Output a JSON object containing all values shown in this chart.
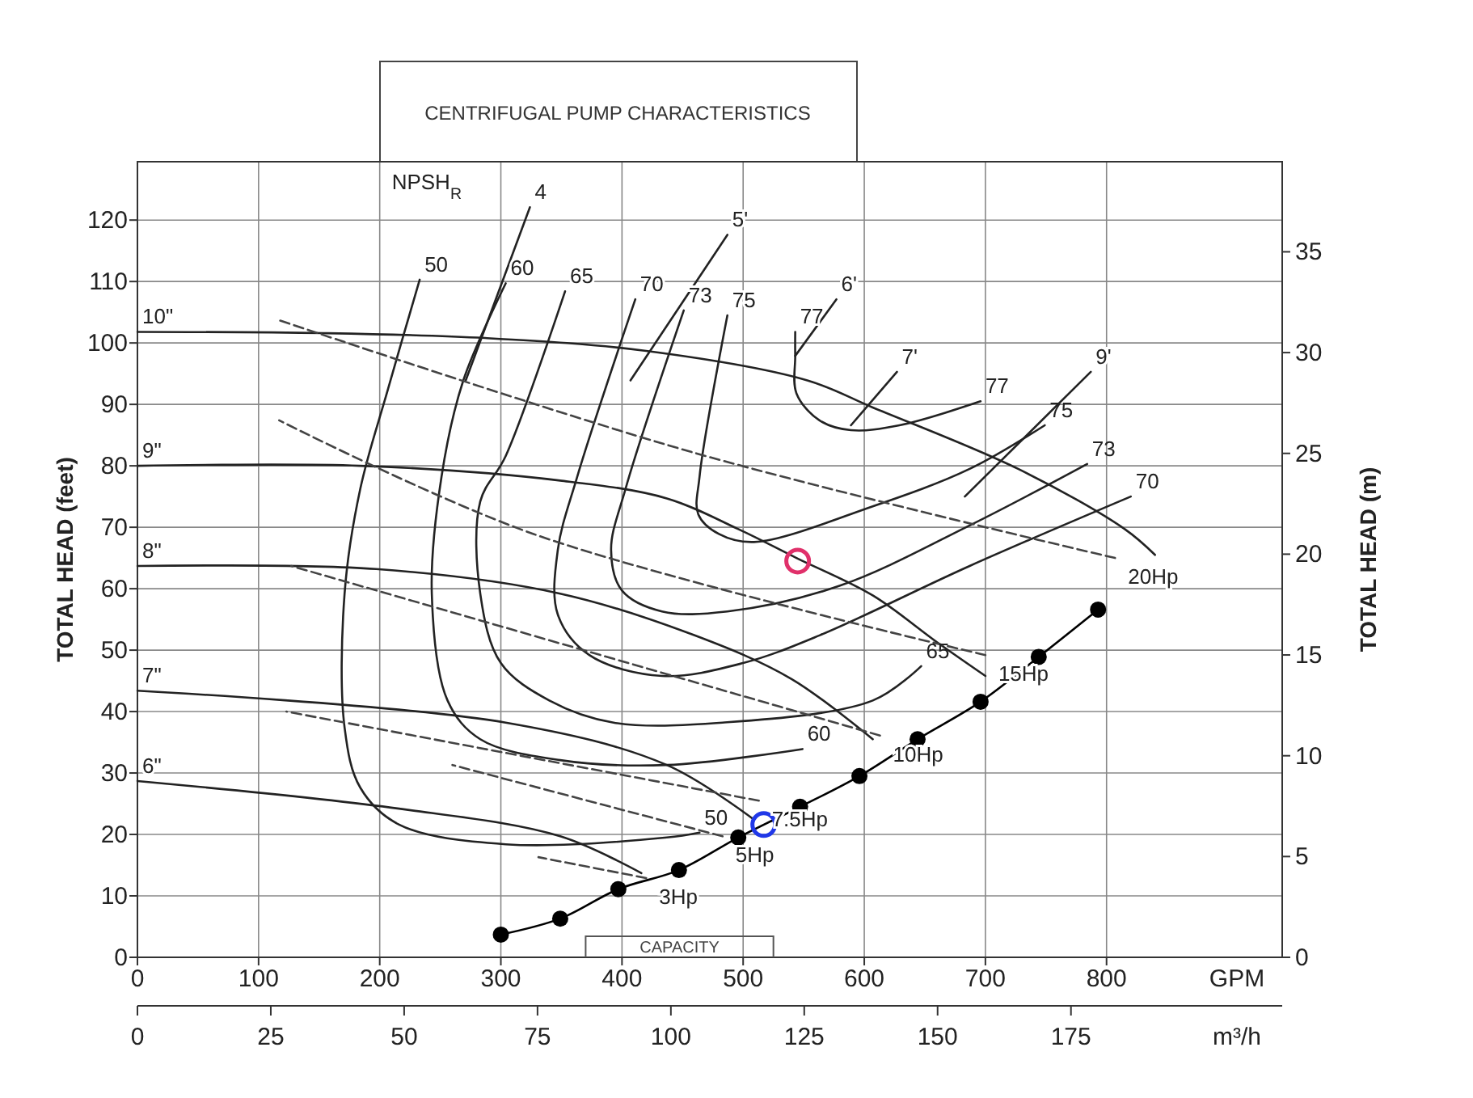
{
  "chart_data": {
    "type": "line",
    "title": "CENTRIFUGAL PUMP CHARACTERISTICS",
    "xlabel": "GPM",
    "x2label": "m³/h",
    "ylabel": "TOTAL HEAD (feet)",
    "y2label": "TOTAL HEAD (m)",
    "annotations": [
      "NPSH$_{R}$",
      "CAPACITY"
    ],
    "xlim": [
      0,
      945
    ],
    "xticks": [
      0,
      100,
      200,
      300,
      400,
      500,
      600,
      700,
      800
    ],
    "x2lim": [
      0,
      214.6
    ],
    "x2ticks": [
      0,
      25,
      50,
      75,
      100,
      125,
      150,
      175
    ],
    "ylim": [
      0,
      129.5
    ],
    "yticks": [
      0,
      10,
      20,
      30,
      40,
      50,
      60,
      70,
      80,
      90,
      100,
      110,
      120
    ],
    "y2lim": [
      0,
      39.47
    ],
    "y2ticks": [
      0,
      5,
      10,
      15,
      20,
      25,
      30,
      35
    ],
    "grid": true,
    "series": [
      {
        "name": "10\"",
        "color": "#222222",
        "x": [
          0,
          153,
          287,
          420,
          553,
          607,
          727,
          815,
          840
        ],
        "values": [
          101.8,
          101.6,
          100.8,
          98.7,
          93.9,
          89.5,
          79.5,
          69.7,
          65.5
        ]
      },
      {
        "name": "9\"",
        "color": "#222222",
        "x": [
          0,
          184,
          349,
          437,
          496,
          544,
          607,
          660,
          700
        ],
        "values": [
          80,
          80,
          77.6,
          74.7,
          69.7,
          65,
          58.9,
          51.3,
          45.8
        ]
      },
      {
        "name": "8\"",
        "color": "#222222",
        "x": [
          0,
          197,
          349,
          460,
          540,
          607
        ],
        "values": [
          63.7,
          63.2,
          59.2,
          52.4,
          45.3,
          35.5
        ]
      },
      {
        "name": "7\"",
        "color": "#222222",
        "x": [
          0,
          304,
          437,
          509
        ],
        "values": [
          43.4,
          38.2,
          31.3,
          22.4
        ]
      },
      {
        "name": "6\"",
        "color": "#222222",
        "x": [
          0,
          216,
          349,
          416
        ],
        "values": [
          28.7,
          24.2,
          19.7,
          13.7
        ]
      },
      {
        "name": "50",
        "color": "#222222",
        "x": [
          233,
          207,
          184,
          171,
          171,
          184,
          216,
          304,
          437,
          464
        ],
        "values": [
          110.3,
          92.6,
          76.3,
          59.2,
          37.4,
          27.6,
          21.6,
          18.4,
          19.5,
          20.3
        ]
      },
      {
        "name": "60",
        "color": "#222222",
        "x": [
          304,
          269,
          251,
          243,
          256,
          283,
          349,
          437,
          549
        ],
        "values": [
          109.7,
          93.9,
          78.2,
          59.2,
          41.8,
          35.5,
          32.1,
          31.3,
          33.9
        ]
      },
      {
        "name": "65",
        "color": "#222222",
        "x": [
          353,
          304,
          283,
          283,
          300,
          340,
          393,
          483,
          607,
          647
        ],
        "values": [
          108.4,
          81.6,
          74.2,
          59.2,
          47.9,
          41.8,
          38.2,
          38.2,
          41.8,
          47.4
        ]
      },
      {
        "name": "70",
        "color": "#222222",
        "x": [
          411,
          363,
          347,
          347,
          373,
          433,
          500,
          563,
          687,
          820
        ],
        "values": [
          107.1,
          78.2,
          66.3,
          55.8,
          49.2,
          45.8,
          47.9,
          52.4,
          63.7,
          75
        ]
      },
      {
        "name": "73",
        "color": "#222222",
        "x": [
          451,
          403,
          391,
          400,
          433,
          487,
          580,
          687,
          784
        ],
        "values": [
          105.3,
          76.3,
          66.3,
          59.7,
          56.3,
          56.3,
          60.5,
          70.3,
          80.3
        ]
      },
      {
        "name": "75",
        "color": "#222222",
        "x": [
          487,
          464,
          463,
          480,
          509,
          607,
          687,
          749
        ],
        "values": [
          104.5,
          78.2,
          72.1,
          68.9,
          67.6,
          73.4,
          79.5,
          86.6
        ]
      },
      {
        "name": "77",
        "color": "#222222",
        "x": [
          543,
          543,
          544,
          563,
          589,
          629,
          696
        ],
        "values": [
          101.8,
          97.9,
          91.8,
          87.4,
          85.8,
          86.6,
          90.5
        ]
      },
      {
        "name": "4",
        "color": "#222222",
        "x": [
          324,
          271
        ],
        "values": [
          122.1,
          93.9
        ]
      },
      {
        "name": "5'",
        "color": "#222222",
        "x": [
          487,
          407
        ],
        "values": [
          117.6,
          93.9
        ]
      },
      {
        "name": "6'",
        "color": "#222222",
        "x": [
          577,
          543
        ],
        "values": [
          107.1,
          97.9
        ]
      },
      {
        "name": "7'",
        "color": "#222222",
        "x": [
          627,
          589
        ],
        "values": [
          95.3,
          86.6
        ]
      },
      {
        "name": "9'",
        "color": "#222222",
        "x": [
          787,
          683
        ],
        "values": [
          95.3,
          75
        ]
      },
      {
        "name": "20Hp",
        "line_style": "dashed",
        "color": "#444444",
        "x": [
          807,
          460,
          117
        ],
        "values": [
          65,
          82.1,
          103.7
        ]
      },
      {
        "name": "15Hp",
        "line_style": "dashed",
        "color": "#444444",
        "x": [
          700,
          327,
          117
        ],
        "values": [
          49.2,
          68.9,
          87.4
        ]
      },
      {
        "name": "10Hp",
        "line_style": "dashed",
        "color": "#444444",
        "x": [
          613,
          127
        ],
        "values": [
          36.1,
          63.7
        ]
      },
      {
        "name": "7.5Hp",
        "line_style": "dashed",
        "color": "#444444",
        "x": [
          513,
          123
        ],
        "values": [
          25.5,
          40
        ]
      },
      {
        "name": "5Hp",
        "line_style": "dashed",
        "color": "#444444",
        "x": [
          483,
          260
        ],
        "values": [
          19.7,
          31.3
        ]
      },
      {
        "name": "3Hp",
        "line_style": "dashed",
        "color": "#444444",
        "x": [
          420,
          331
        ],
        "values": [
          12.9,
          16.3
        ]
      },
      {
        "marker": "circle",
        "color": "#000000",
        "x": [
          300,
          349,
          397,
          447,
          496,
          547,
          596,
          644,
          696,
          744,
          793
        ],
        "values": [
          3.7,
          6.3,
          11.1,
          14.2,
          19.5,
          24.5,
          29.5,
          35.5,
          41.6,
          48.9,
          56.6
        ]
      },
      {
        "type": "scatter",
        "marker": "circle",
        "color": "#e0306a",
        "x": [
          545
        ],
        "values": [
          64.5
        ]
      },
      {
        "type": "scatter",
        "marker": "circle",
        "color": "#2038e8",
        "x": [
          517
        ],
        "values": [
          21.6
        ]
      }
    ]
  }
}
